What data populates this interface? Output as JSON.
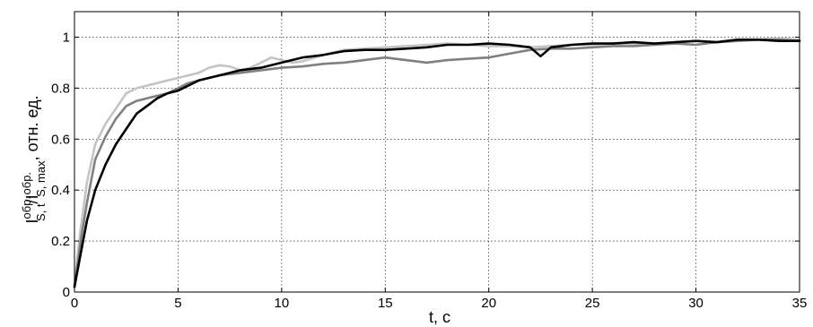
{
  "chart_data": {
    "type": "line",
    "xlabel": "t, с",
    "ylabel": {
      "main": "I",
      "sup1": "обр.",
      "sub1": "S, t",
      "slash": "/I",
      "sup2": "обр.",
      "sub2": "S, max",
      "suffix": ", отн. ед."
    },
    "xlim": [
      0,
      35
    ],
    "ylim": [
      0,
      1.1
    ],
    "x_ticks": [
      0,
      5,
      10,
      15,
      20,
      25,
      30,
      35
    ],
    "y_ticks": [
      0,
      0.2,
      0.4,
      0.6,
      0.8,
      1
    ],
    "x_tick_labels": [
      "0",
      "5",
      "10",
      "15",
      "20",
      "25",
      "30",
      "35"
    ],
    "y_tick_labels": [
      "0",
      "0.2",
      "0.4",
      "0.6",
      "0.8",
      "1"
    ],
    "grid": true,
    "series": [
      {
        "color": "#c4c4c4",
        "x": [
          0,
          0.3,
          0.6,
          1,
          1.5,
          2,
          2.5,
          3,
          3.5,
          4,
          4.5,
          5,
          5.5,
          6,
          6.5,
          7,
          7.5,
          8,
          8.5,
          9,
          9.5,
          10,
          10.5,
          11,
          12,
          13,
          14,
          15,
          16,
          17,
          18,
          19,
          20,
          21,
          22,
          23,
          24,
          25,
          26,
          27,
          28,
          29,
          30,
          31,
          32,
          33,
          34,
          35
        ],
        "y": [
          0.03,
          0.25,
          0.43,
          0.58,
          0.66,
          0.72,
          0.78,
          0.8,
          0.81,
          0.82,
          0.83,
          0.84,
          0.85,
          0.86,
          0.88,
          0.89,
          0.885,
          0.87,
          0.88,
          0.9,
          0.92,
          0.91,
          0.9,
          0.905,
          0.93,
          0.95,
          0.955,
          0.96,
          0.965,
          0.97,
          0.975,
          0.97,
          0.965,
          0.965,
          0.96,
          0.965,
          0.97,
          0.97,
          0.975,
          0.975,
          0.97,
          0.98,
          0.985,
          0.98,
          0.985,
          0.99,
          0.995,
          0.99
        ]
      },
      {
        "color": "#808080",
        "x": [
          0,
          0.3,
          0.6,
          1,
          1.5,
          2,
          2.5,
          3,
          3.5,
          4,
          4.5,
          5,
          5.5,
          6,
          7,
          8,
          9,
          10,
          11,
          12,
          13,
          14,
          15,
          16,
          17,
          18,
          19,
          20,
          21,
          22,
          23,
          24,
          25,
          26,
          27,
          28,
          29,
          30,
          31,
          32,
          33,
          34,
          35
        ],
        "y": [
          0.02,
          0.2,
          0.35,
          0.52,
          0.61,
          0.68,
          0.73,
          0.75,
          0.76,
          0.77,
          0.78,
          0.8,
          0.82,
          0.83,
          0.85,
          0.86,
          0.87,
          0.88,
          0.885,
          0.895,
          0.9,
          0.91,
          0.92,
          0.91,
          0.9,
          0.91,
          0.915,
          0.92,
          0.935,
          0.95,
          0.955,
          0.955,
          0.96,
          0.965,
          0.965,
          0.97,
          0.975,
          0.97,
          0.98,
          0.985,
          0.99,
          0.99,
          0.985
        ]
      },
      {
        "color": "#000000",
        "x": [
          0,
          0.3,
          0.6,
          1,
          1.5,
          2,
          2.5,
          3,
          3.5,
          4,
          4.5,
          5,
          5.5,
          6,
          7,
          8,
          9,
          10,
          11,
          12,
          13,
          14,
          15,
          16,
          17,
          18,
          19,
          20,
          21,
          22,
          22.5,
          23,
          24,
          25,
          26,
          27,
          28,
          29,
          30,
          31,
          32,
          33,
          34,
          35
        ],
        "y": [
          0.02,
          0.15,
          0.28,
          0.4,
          0.5,
          0.58,
          0.64,
          0.7,
          0.73,
          0.76,
          0.78,
          0.79,
          0.81,
          0.83,
          0.85,
          0.87,
          0.88,
          0.9,
          0.92,
          0.93,
          0.945,
          0.95,
          0.95,
          0.955,
          0.96,
          0.97,
          0.97,
          0.975,
          0.97,
          0.96,
          0.925,
          0.96,
          0.97,
          0.975,
          0.975,
          0.98,
          0.975,
          0.98,
          0.985,
          0.98,
          0.99,
          0.99,
          0.985,
          0.985
        ]
      }
    ]
  }
}
